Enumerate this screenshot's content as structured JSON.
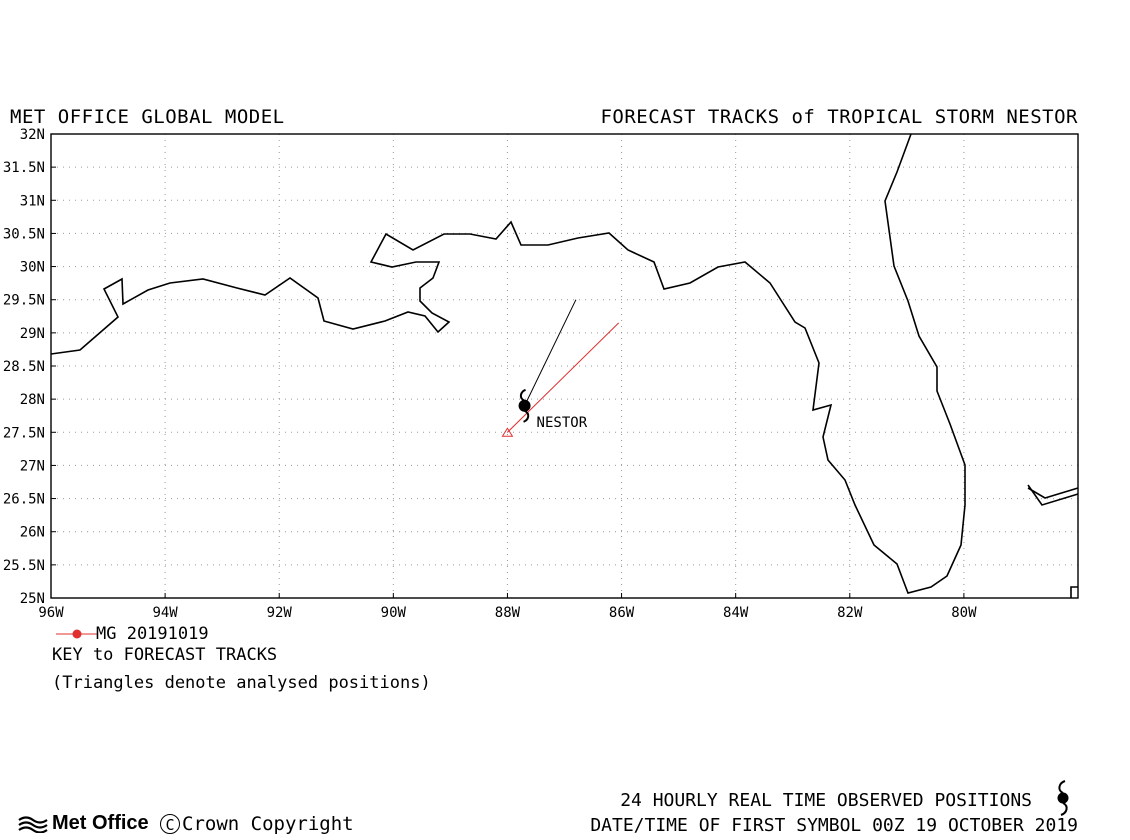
{
  "header": {
    "left_title": "MET OFFICE GLOBAL MODEL",
    "right_title": "FORECAST TRACKS of TROPICAL STORM NESTOR"
  },
  "map": {
    "lat_labels": [
      "32N",
      "31.5N",
      "31N",
      "30.5N",
      "30N",
      "29.5N",
      "29N",
      "28.5N",
      "28N",
      "27.5N",
      "27N",
      "26.5N",
      "26N",
      "25.5N",
      "25N"
    ],
    "lon_labels": [
      "96W",
      "94W",
      "92W",
      "90W",
      "88W",
      "86W",
      "84W",
      "82W",
      "80W"
    ],
    "lat_range": [
      25,
      32
    ],
    "lon_range": [
      -96,
      -78
    ],
    "grid": "dotted",
    "storm_label": "NESTOR",
    "storm_position": {
      "lat": 27.9,
      "lon": -87.7
    },
    "observed_track": [
      {
        "lat": 27.9,
        "lon": -87.7
      },
      {
        "lat": 29.5,
        "lon": -86.8
      }
    ],
    "forecast_track": {
      "name": "MG 20191019",
      "color": "#e03030",
      "points": [
        {
          "lat": 27.5,
          "lon": -88.0
        },
        {
          "lat": 29.15,
          "lon": -86.05
        }
      ],
      "analysed_marker": "triangle"
    }
  },
  "key": {
    "entry": "MG 20191019",
    "heading": "KEY to FORECAST TRACKS",
    "note": "(Triangles denote analysed positions)"
  },
  "footer": {
    "observed": "24 HOURLY REAL TIME OBSERVED POSITIONS",
    "datetime": "DATE/TIME OF FIRST SYMBOL 00Z 19 OCTOBER 2019",
    "logo": "Met Office",
    "copyright_symbol": "C",
    "copyright": "Crown Copyright"
  }
}
